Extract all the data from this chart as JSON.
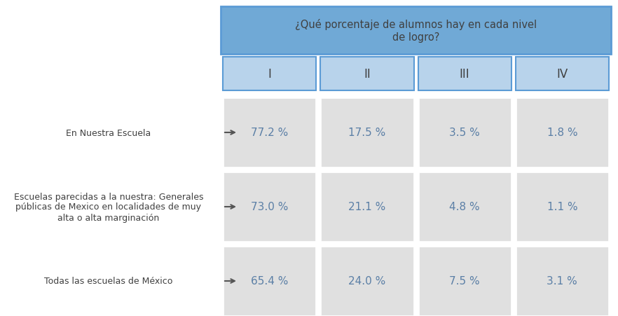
{
  "header_main": "¿Qué porcentaje de alumnos hay en cada nivel\nde logro?",
  "header_cols": [
    "I",
    "II",
    "III",
    "IV"
  ],
  "rows": [
    {
      "label": "En Nuestra Escuela",
      "values": [
        "77.2 %",
        "17.5 %",
        "3.5 %",
        "1.8 %"
      ]
    },
    {
      "label": "Escuelas parecidas a la nuestra: Generales\npúblicas de Mexico en localidades de muy\nalta o alta marginación",
      "values": [
        "73.0 %",
        "21.1 %",
        "4.8 %",
        "1.1 %"
      ]
    },
    {
      "label": "Todas las escuelas de México",
      "values": [
        "65.4 %",
        "24.0 %",
        "7.5 %",
        "3.1 %"
      ]
    }
  ],
  "header_bg": "#70a9d6",
  "header_text_color": "#404040",
  "header_border": "#5b9bd5",
  "subheader_bg": "#b8d3eb",
  "subheader_text_color": "#404040",
  "subheader_border": "#5b9bd5",
  "cell_bg": "#e0e0e0",
  "cell_text_color": "#5b7fa6",
  "label_text_color": "#404040",
  "bg_color": "#ffffff",
  "arrow_color": "#555555"
}
